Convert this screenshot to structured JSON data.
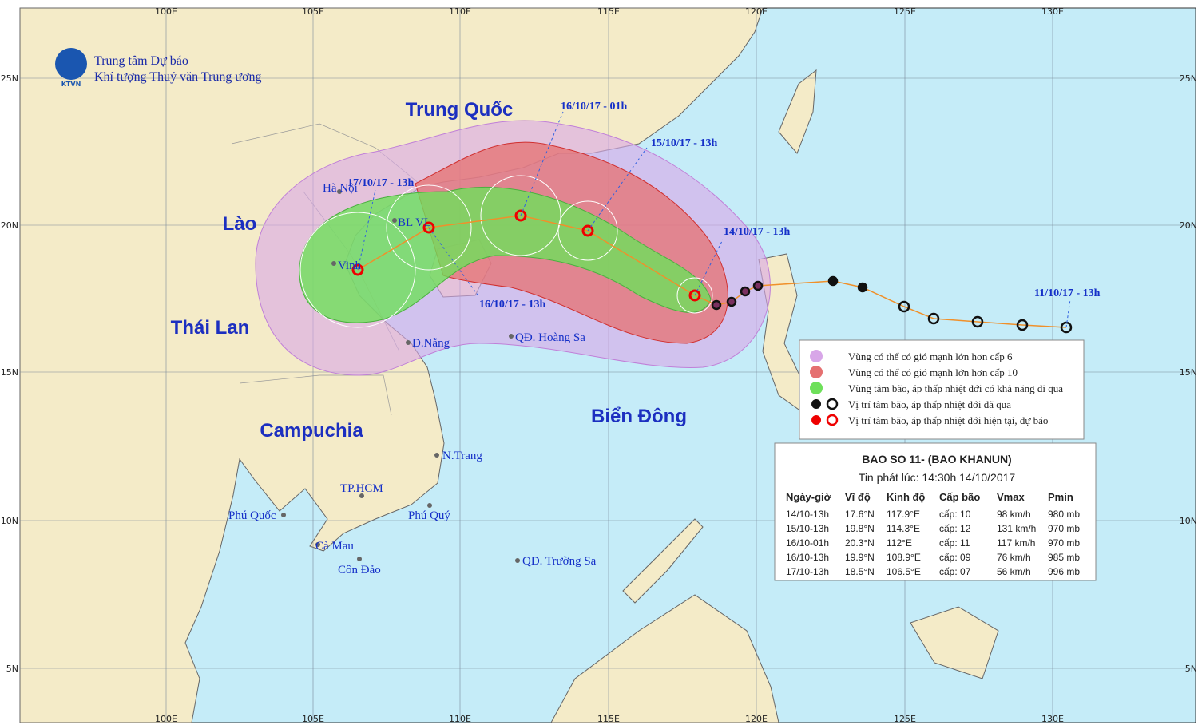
{
  "header": {
    "organization": [
      "Trung tâm Dự báo",
      "Khí tượng Thuỷ văn Trung ương"
    ],
    "logo": "KTVN"
  },
  "axes": {
    "lon_labels": [
      "100E",
      "105E",
      "110E",
      "115E",
      "120E",
      "125E",
      "130E"
    ],
    "lat_labels": [
      "25N",
      "20N",
      "15N",
      "10N",
      "5N"
    ]
  },
  "regions": [
    "Trung Quốc",
    "Lào",
    "Thái Lan",
    "Campuchia",
    "Biển Đông"
  ],
  "places": [
    "Hà Nội",
    "Vinh",
    "BL VL",
    "Đ.Nẵng",
    "QĐ. Hoàng Sa",
    "N.Trang",
    "TP.HCM",
    "Phú Quốc",
    "Phú Quý",
    "Cà Mau",
    "Côn Đảo",
    "QĐ. Trường Sa"
  ],
  "track_labels": [
    "11/10/17 - 13h",
    "14/10/17 - 13h",
    "15/10/17 - 13h",
    "16/10/17 - 01h",
    "16/10/17 - 13h",
    "17/10/17 - 13h"
  ],
  "legend": [
    "Vùng có thể có gió mạnh lớn hơn cấp 6",
    "Vùng có thể có gió mạnh lớn hơn cấp 10",
    "Vùng tâm bão, áp thấp nhiệt đới có khả năng đi qua",
    "Vị trí tâm bão, áp thấp nhiệt đới đã qua",
    "Vị trí tâm bão, áp thấp nhiệt đới hiện tại, dự báo"
  ],
  "bulletin": {
    "title": "BAO SO 11- (BAO KHANUN)",
    "issued": "Tin phát lúc: 14:30h 14/10/2017",
    "columns": [
      "Ngày-giờ",
      "Vĩ độ",
      "Kinh độ",
      "Cấp bão",
      "Vmax",
      "Pmin"
    ],
    "rows": [
      [
        "14/10-13h",
        "17.6°N",
        "117.9°E",
        "cấp: 10",
        "98 km/h",
        "980 mb"
      ],
      [
        "15/10-13h",
        "19.8°N",
        "114.3°E",
        "cấp: 12",
        "131 km/h",
        "970 mb"
      ],
      [
        "16/10-01h",
        "20.3°N",
        "112°E",
        "cấp: 11",
        "117 km/h",
        "970 mb"
      ],
      [
        "16/10-13h",
        "19.9°N",
        "108.9°E",
        "cấp: 09",
        "76 km/h",
        "985 mb"
      ],
      [
        "17/10-13h",
        "18.5°N",
        "106.5°E",
        "cấp: 07",
        "56 km/h",
        "996 mb"
      ]
    ]
  }
}
